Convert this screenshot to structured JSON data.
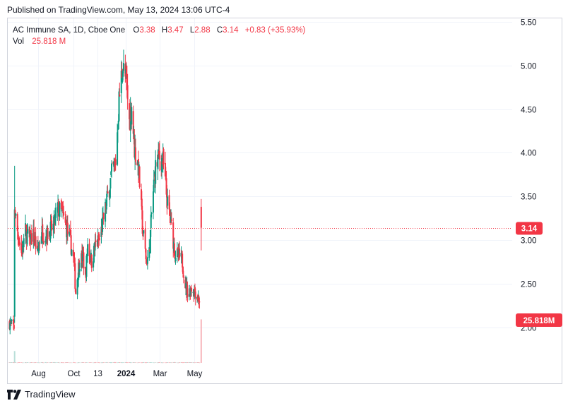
{
  "header": {
    "published": "Published on TradingView.com, May 13, 2024 13:06 UTC-4"
  },
  "legend": {
    "symbol": "AC Immune SA, 1D, Cboe One",
    "open_label": "O",
    "open": "3.38",
    "high_label": "H",
    "high": "3.47",
    "low_label": "L",
    "low": "2.88",
    "close_label": "C",
    "close": "3.14",
    "change": "+0.83 (+35.93%)",
    "vol_label": "Vol",
    "vol": "25.818 M"
  },
  "footer": {
    "brand": "TradingView"
  },
  "colors": {
    "up": "#089981",
    "down": "#f23645",
    "grid": "#f0f3fa",
    "border": "#d1d4dc",
    "vol_up": "#b9dfd9",
    "vol_down": "#f7b6bc"
  },
  "chart_data": {
    "type": "candlestick",
    "title": "AC Immune SA, 1D, Cboe One",
    "price_scale": {
      "min": 1.5,
      "max": 5.6,
      "ticks": [
        "5.50",
        "5.00",
        "4.50",
        "4.00",
        "3.50",
        "3.00",
        "2.50",
        "2.00"
      ]
    },
    "x_ticks": [
      {
        "label": "Aug",
        "bold": false
      },
      {
        "label": "Oct",
        "bold": false
      },
      {
        "label": "13",
        "bold": false
      },
      {
        "label": "2024",
        "bold": true
      },
      {
        "label": "Mar",
        "bold": false
      },
      {
        "label": "May",
        "bold": false
      }
    ],
    "last_price_label": "3.14",
    "last_volume_label": "25.818M",
    "anchors": [
      [
        "2023-06-12",
        2.05
      ],
      [
        "2023-06-20",
        2.0
      ],
      [
        "2023-06-21",
        3.35
      ],
      [
        "2023-06-26",
        3.1
      ],
      [
        "2023-07-03",
        2.85
      ],
      [
        "2023-07-10",
        3.1
      ],
      [
        "2023-07-17",
        3.0
      ],
      [
        "2023-07-24",
        3.05
      ],
      [
        "2023-07-31",
        2.85
      ],
      [
        "2023-08-07",
        3.1
      ],
      [
        "2023-08-14",
        3.05
      ],
      [
        "2023-08-21",
        3.1
      ],
      [
        "2023-08-28",
        3.15
      ],
      [
        "2023-09-05",
        3.35
      ],
      [
        "2023-09-12",
        3.3
      ],
      [
        "2023-09-19",
        3.15
      ],
      [
        "2023-09-26",
        3.0
      ],
      [
        "2023-10-03",
        2.75
      ],
      [
        "2023-10-06",
        2.4
      ],
      [
        "2023-10-12",
        2.75
      ],
      [
        "2023-10-19",
        2.8
      ],
      [
        "2023-10-23",
        2.55
      ],
      [
        "2023-10-27",
        2.95
      ],
      [
        "2023-11-03",
        2.75
      ],
      [
        "2023-11-10",
        2.95
      ],
      [
        "2023-11-17",
        3.0
      ],
      [
        "2023-11-24",
        3.25
      ],
      [
        "2023-12-01",
        3.5
      ],
      [
        "2023-12-08",
        3.75
      ],
      [
        "2023-12-15",
        3.9
      ],
      [
        "2023-12-21",
        4.6
      ],
      [
        "2023-12-27",
        5.0
      ],
      [
        "2024-01-03",
        4.8
      ],
      [
        "2024-01-08",
        4.35
      ],
      [
        "2024-01-12",
        4.55
      ],
      [
        "2024-01-17",
        4.05
      ],
      [
        "2024-01-24",
        3.85
      ],
      [
        "2024-01-31",
        3.15
      ],
      [
        "2024-02-07",
        2.75
      ],
      [
        "2024-02-12",
        2.85
      ],
      [
        "2024-02-16",
        3.3
      ],
      [
        "2024-02-22",
        3.8
      ],
      [
        "2024-02-29",
        3.95
      ],
      [
        "2024-03-07",
        3.9
      ],
      [
        "2024-03-12",
        3.6
      ],
      [
        "2024-03-15",
        3.4
      ],
      [
        "2024-03-22",
        3.15
      ],
      [
        "2024-03-28",
        2.85
      ],
      [
        "2024-04-04",
        2.8
      ],
      [
        "2024-04-10",
        2.75
      ],
      [
        "2024-04-16",
        2.45
      ],
      [
        "2024-04-22",
        2.4
      ],
      [
        "2024-04-26",
        2.45
      ],
      [
        "2024-05-02",
        2.42
      ],
      [
        "2024-05-09",
        2.32
      ],
      [
        "2024-05-10",
        2.31
      ]
    ],
    "spike_candles": [
      {
        "date": "2023-06-21",
        "open": 2.12,
        "high": 3.85,
        "low": 2.05,
        "close": 3.35,
        "volume": 7.0
      }
    ],
    "last_candle": {
      "date": "2024-05-13",
      "open": 3.38,
      "high": 3.47,
      "low": 2.88,
      "close": 3.14,
      "volume": 25.818
    }
  }
}
